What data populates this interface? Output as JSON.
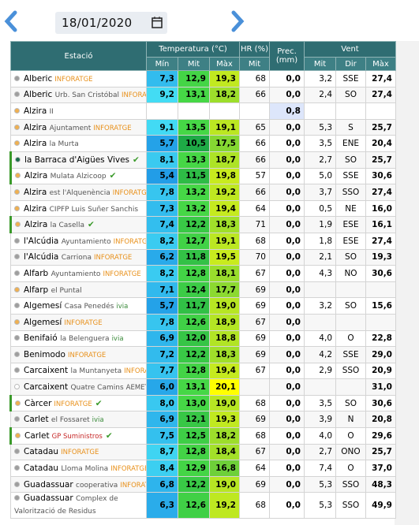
{
  "date_picker": {
    "date": "18/01/2020"
  },
  "table": {
    "headers": [
      "Estació",
      "Temperatura (°C)",
      "HR (%)",
      "Prec. (mm)",
      "Vent"
    ],
    "subheaders": [
      "Mín",
      "Mit",
      "Màx",
      "Mit",
      "Mit",
      "Dir",
      "Màx"
    ],
    "rows": [
      {
        "name": "Alberic",
        "detail": null,
        "tag": "INFORATGE",
        "dot": "#9e9e9e",
        "check": false,
        "values": [
          "7,3",
          "12,9",
          "19,3",
          "68",
          "0,0",
          "3,2",
          "SSE",
          "27,4"
        ]
      },
      {
        "name": "Alberic",
        "detail": "Urb. San Cristóbal",
        "tag": "INFORATGE",
        "dot": "#9e9e9e",
        "check": false,
        "values": [
          "9,2",
          "13,1",
          "18,2",
          "66",
          "0,0",
          "2,4",
          "SO",
          "27,4"
        ]
      },
      {
        "name": "Alzira",
        "detail": "II",
        "tag": null,
        "dot": "#f0b050",
        "check": false,
        "values": [
          null,
          null,
          null,
          null,
          "0,8",
          null,
          null,
          null
        ]
      },
      {
        "name": "Alzira",
        "detail": "Ajuntament",
        "tag": "INFORATGE",
        "dot": "#f0b050",
        "check": false,
        "values": [
          "9,1",
          "13,5",
          "19,1",
          "65",
          "0,0",
          "5,3",
          "S",
          "25,7"
        ]
      },
      {
        "name": "Alzira",
        "detail": "la Murta",
        "tag": null,
        "dot": "#f0b050",
        "check": false,
        "values": [
          "5,7",
          "10,5",
          "17,5",
          "66",
          "0,0",
          "3,5",
          "ENE",
          "20,4"
        ]
      },
      {
        "name": "la Barraca d'Aigües Vives",
        "detail": null,
        "tag": null,
        "dot": "#1a6b4a",
        "check": true,
        "values": [
          "8,1",
          "13,3",
          "18,7",
          "66",
          "0,0",
          "2,7",
          "SO",
          "25,7"
        ]
      },
      {
        "name": "Alzira",
        "detail": "Mulata Alzicoop",
        "tag": null,
        "dot": "#f0b050",
        "check": true,
        "values": [
          "5,4",
          "11,5",
          "19,8",
          "57",
          "0,0",
          "5,0",
          "SSE",
          "30,6"
        ]
      },
      {
        "name": "Alzira",
        "detail": "est l'Alquenència",
        "tag": "INFORATGE",
        "dot": "#f0b050",
        "check": false,
        "values": [
          "7,8",
          "13,2",
          "19,2",
          "66",
          "0,0",
          "3,7",
          "SSO",
          "27,4"
        ]
      },
      {
        "name": "Alzira",
        "detail": "CIPFP Luis Suñer Sanchis",
        "tag": null,
        "dot": "#f0b050",
        "check": false,
        "values": [
          "7,3",
          "13,2",
          "19,4",
          "64",
          "0,0",
          "0,5",
          "NE",
          "16,0"
        ]
      },
      {
        "name": "Alzira",
        "detail": "la Casella",
        "tag": null,
        "dot": "#f0b050",
        "check": true,
        "values": [
          "7,4",
          "12,2",
          "18,3",
          "71",
          "0,0",
          "1,9",
          "ESE",
          "16,1"
        ]
      },
      {
        "name": "l'Alcúdia",
        "detail": "Ayuntamiento",
        "tag": "INFORATGE",
        "dot": "#9e9e9e",
        "check": false,
        "values": [
          "8,2",
          "12,7",
          "19,1",
          "68",
          "0,0",
          "1,8",
          "ESE",
          "27,4"
        ]
      },
      {
        "name": "l'Alcúdia",
        "detail": "Carriona",
        "tag": "INFORATGE",
        "dot": "#9e9e9e",
        "check": false,
        "values": [
          "6,2",
          "11,8",
          "19,5",
          "70",
          "0,0",
          "2,1",
          "SO",
          "19,3"
        ]
      },
      {
        "name": "Alfarb",
        "detail": "Ayuntamiento",
        "tag": "INFORATGE",
        "dot": "#9e9e9e",
        "check": false,
        "values": [
          "8,2",
          "12,8",
          "18,1",
          "67",
          "0,0",
          "4,3",
          "NO",
          "30,6"
        ]
      },
      {
        "name": "Alfarp",
        "detail": "el Puntal",
        "tag": null,
        "dot": "#f0b050",
        "check": false,
        "values": [
          "7,1",
          "12,4",
          "17,7",
          "69",
          "0,0",
          null,
          null,
          null
        ]
      },
      {
        "name": "Algemesí",
        "detail": "Casa Penedés",
        "tag": "ivia",
        "dot": "#9e9e9e",
        "check": false,
        "values": [
          "5,7",
          "11,7",
          "19,0",
          "69",
          "0,0",
          "3,2",
          "SO",
          "15,6"
        ]
      },
      {
        "name": "Algemesí",
        "detail": null,
        "tag": "INFORATGE",
        "dot": "#f0b050",
        "check": false,
        "values": [
          "7,8",
          "12,6",
          "18,9",
          "67",
          "0,0",
          null,
          null,
          null
        ]
      },
      {
        "name": "Benifaió",
        "detail": "la Belenguera",
        "tag": "ivia",
        "dot": "#9e9e9e",
        "check": false,
        "values": [
          "6,9",
          "12,0",
          "18,8",
          "69",
          "0,0",
          "4,0",
          "O",
          "22,8"
        ]
      },
      {
        "name": "Benimodo",
        "detail": null,
        "tag": "INFORATGE",
        "dot": "#9e9e9e",
        "check": false,
        "values": [
          "7,2",
          "12,2",
          "18,3",
          "69",
          "0,0",
          "4,2",
          "SSE",
          "29,0"
        ]
      },
      {
        "name": "Carcaixent",
        "detail": "la Muntanyeta",
        "tag": "INFORATGE",
        "dot": "#9e9e9e",
        "check": false,
        "values": [
          "7,7",
          "12,8",
          "19,4",
          "67",
          "0,0",
          "2,9",
          "SSO",
          "20,9"
        ]
      },
      {
        "name": "Carcaixent",
        "detail": "Quatre Camins",
        "tag": "AEMET",
        "dot": "#ffffff",
        "check": false,
        "values": [
          "6,0",
          "13,1",
          "20,1",
          null,
          "0,0",
          null,
          null,
          "31,0"
        ]
      },
      {
        "name": "Càrcer",
        "detail": null,
        "tag": "INFORATGE",
        "dot": "#f0b050",
        "check": true,
        "values": [
          "8,0",
          "13,0",
          "19,0",
          "68",
          "0,0",
          "3,5",
          "SO",
          "30,6"
        ]
      },
      {
        "name": "Carlet",
        "detail": "el Fossaret",
        "tag": "ivia",
        "dot": "#9e9e9e",
        "check": false,
        "values": [
          "6,9",
          "12,1",
          "19,3",
          "69",
          "0,0",
          "3,9",
          "N",
          "20,8"
        ]
      },
      {
        "name": "Carlet",
        "detail": null,
        "tag": "GP Suministros",
        "dot": "#f0b050",
        "check": true,
        "values": [
          "7,5",
          "12,5",
          "18,2",
          "68",
          "0,0",
          "4,0",
          "O",
          "29,6"
        ]
      },
      {
        "name": "Catadau",
        "detail": null,
        "tag": "INFORATGE",
        "dot": "#9e9e9e",
        "check": false,
        "values": [
          "8,7",
          "12,8",
          "18,4",
          "67",
          "0,0",
          "2,7",
          "ONO",
          "25,7"
        ]
      },
      {
        "name": "Catadau",
        "detail": "Lloma Molina",
        "tag": "INFORATGE",
        "dot": "#9e9e9e",
        "check": false,
        "values": [
          "8,4",
          "12,9",
          "16,8",
          "64",
          "0,0",
          "7,4",
          "O",
          "37,0"
        ]
      },
      {
        "name": "Guadassuar",
        "detail": "cooperativa",
        "tag": "INFORATGE",
        "dot": "#9e9e9e",
        "check": false,
        "values": [
          "6,8",
          "12,2",
          "19,0",
          "69",
          "0,0",
          "5,3",
          "SSO",
          "48,3"
        ]
      },
      {
        "name": "Guadassuar",
        "detail": "Complex de Valorització de Residus",
        "tag": null,
        "dot": "#9e9e9e",
        "check": false,
        "values": [
          "6,3",
          "12,6",
          "19,2",
          "68",
          "0,0",
          "5,3",
          "SSO",
          "49,9"
        ]
      }
    ]
  }
}
